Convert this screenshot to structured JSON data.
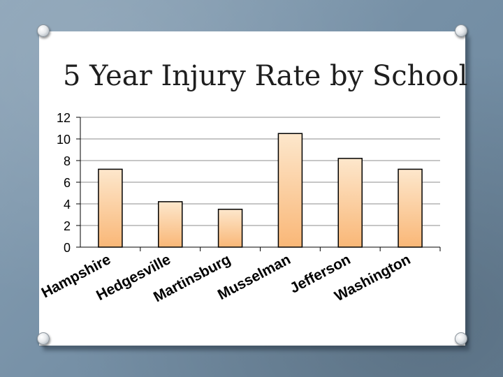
{
  "slide": {
    "title": "5 Year Injury Rate by School"
  },
  "chart_data": {
    "type": "bar",
    "title": "5 Year Injury Rate by School",
    "xlabel": "",
    "ylabel": "",
    "ylim": [
      0,
      12
    ],
    "yticks": [
      0,
      2,
      4,
      6,
      8,
      10,
      12
    ],
    "grid": true,
    "categories": [
      "Hampshire",
      "Hedgesville",
      "Martinsburg",
      "Musselman",
      "Jefferson",
      "Washington"
    ],
    "values": [
      7.2,
      4.2,
      3.5,
      10.5,
      8.2,
      7.2
    ],
    "colors": {
      "bar_top": "#fde7cc",
      "bar_bottom": "#f9b777",
      "bar_stroke": "#000000",
      "grid": "#8c8c8c"
    }
  }
}
